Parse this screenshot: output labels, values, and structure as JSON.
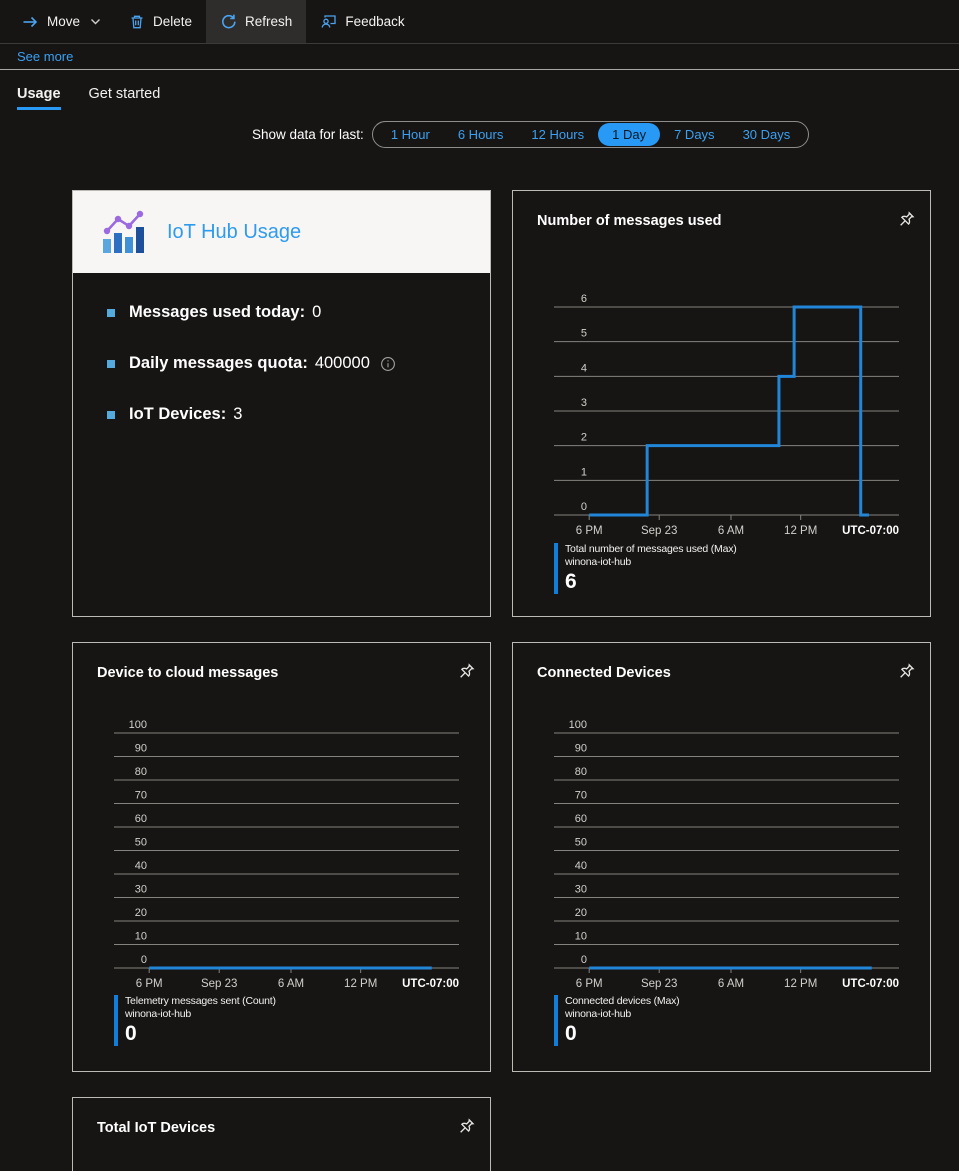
{
  "colors": {
    "accent_blue": "#3aa0f3",
    "selected_pill_bg": "#2899f5",
    "chart_line": "#2185d8",
    "legend_bar": "#0f7fdb",
    "gridline": "#85837f",
    "tick_label": "#d2d0cd",
    "tile_border": "#bcbab7"
  },
  "toolbar": {
    "move_label": "Move",
    "delete_label": "Delete",
    "refresh_label": "Refresh",
    "feedback_label": "Feedback"
  },
  "see_more_label": "See more",
  "tabs": {
    "usage": "Usage",
    "get_started": "Get started"
  },
  "time_filter": {
    "label": "Show data for last:",
    "options": [
      "1 Hour",
      "6 Hours",
      "12 Hours",
      "1 Day",
      "7 Days",
      "30 Days"
    ],
    "selected": "1 Day"
  },
  "usage_tile": {
    "title": "IoT Hub Usage",
    "items": [
      {
        "label": "Messages used today",
        "value": "0"
      },
      {
        "label": "Daily messages quota",
        "value": "400000",
        "info": "info-icon"
      },
      {
        "label": "IoT Devices",
        "value": "3"
      }
    ]
  },
  "chart_data": [
    {
      "type": "line",
      "title": "Number of messages used",
      "ylim": [
        0,
        6
      ],
      "yticks": [
        0,
        1,
        2,
        3,
        4,
        5,
        6
      ],
      "xticks": [
        {
          "label": "6 PM",
          "f": 0.102
        },
        {
          "label": "Sep 23",
          "f": 0.305
        },
        {
          "label": "6 AM",
          "f": 0.513
        },
        {
          "label": "12 PM",
          "f": 0.715
        }
      ],
      "x_end_label": "UTC-07:00",
      "grid": true,
      "points": [
        [
          0.102,
          0
        ],
        [
          0.27,
          0
        ],
        [
          0.27,
          2
        ],
        [
          0.652,
          2
        ],
        [
          0.652,
          4
        ],
        [
          0.696,
          4
        ],
        [
          0.696,
          6
        ],
        [
          0.889,
          6
        ],
        [
          0.889,
          0
        ],
        [
          0.913,
          0
        ]
      ],
      "series": [
        {
          "name": "Total number of messages used (Max)",
          "resource": "winona-iot-hub",
          "aggregate_value": 6
        }
      ]
    },
    {
      "type": "line",
      "title": "Device to cloud messages",
      "ylim": [
        0,
        100
      ],
      "yticks": [
        0,
        10,
        20,
        30,
        40,
        50,
        60,
        70,
        80,
        90,
        100
      ],
      "xticks": [
        {
          "label": "6 PM",
          "f": 0.102
        },
        {
          "label": "Sep 23",
          "f": 0.305
        },
        {
          "label": "6 AM",
          "f": 0.513
        },
        {
          "label": "12 PM",
          "f": 0.715
        }
      ],
      "x_end_label": "UTC-07:00",
      "grid": true,
      "points": [
        [
          0.102,
          0
        ],
        [
          0.921,
          0
        ]
      ],
      "series": [
        {
          "name": "Telemetry messages sent (Count)",
          "resource": "winona-iot-hub",
          "aggregate_value": 0
        }
      ]
    },
    {
      "type": "line",
      "title": "Connected Devices",
      "ylim": [
        0,
        100
      ],
      "yticks": [
        0,
        10,
        20,
        30,
        40,
        50,
        60,
        70,
        80,
        90,
        100
      ],
      "xticks": [
        {
          "label": "6 PM",
          "f": 0.102
        },
        {
          "label": "Sep 23",
          "f": 0.305
        },
        {
          "label": "6 AM",
          "f": 0.513
        },
        {
          "label": "12 PM",
          "f": 0.715
        }
      ],
      "x_end_label": "UTC-07:00",
      "grid": true,
      "points": [
        [
          0.102,
          0
        ],
        [
          0.921,
          0
        ]
      ],
      "series": [
        {
          "name": "Connected devices (Max)",
          "resource": "winona-iot-hub",
          "aggregate_value": 0
        }
      ]
    }
  ],
  "total_devices_tile": {
    "title": "Total IoT Devices"
  }
}
